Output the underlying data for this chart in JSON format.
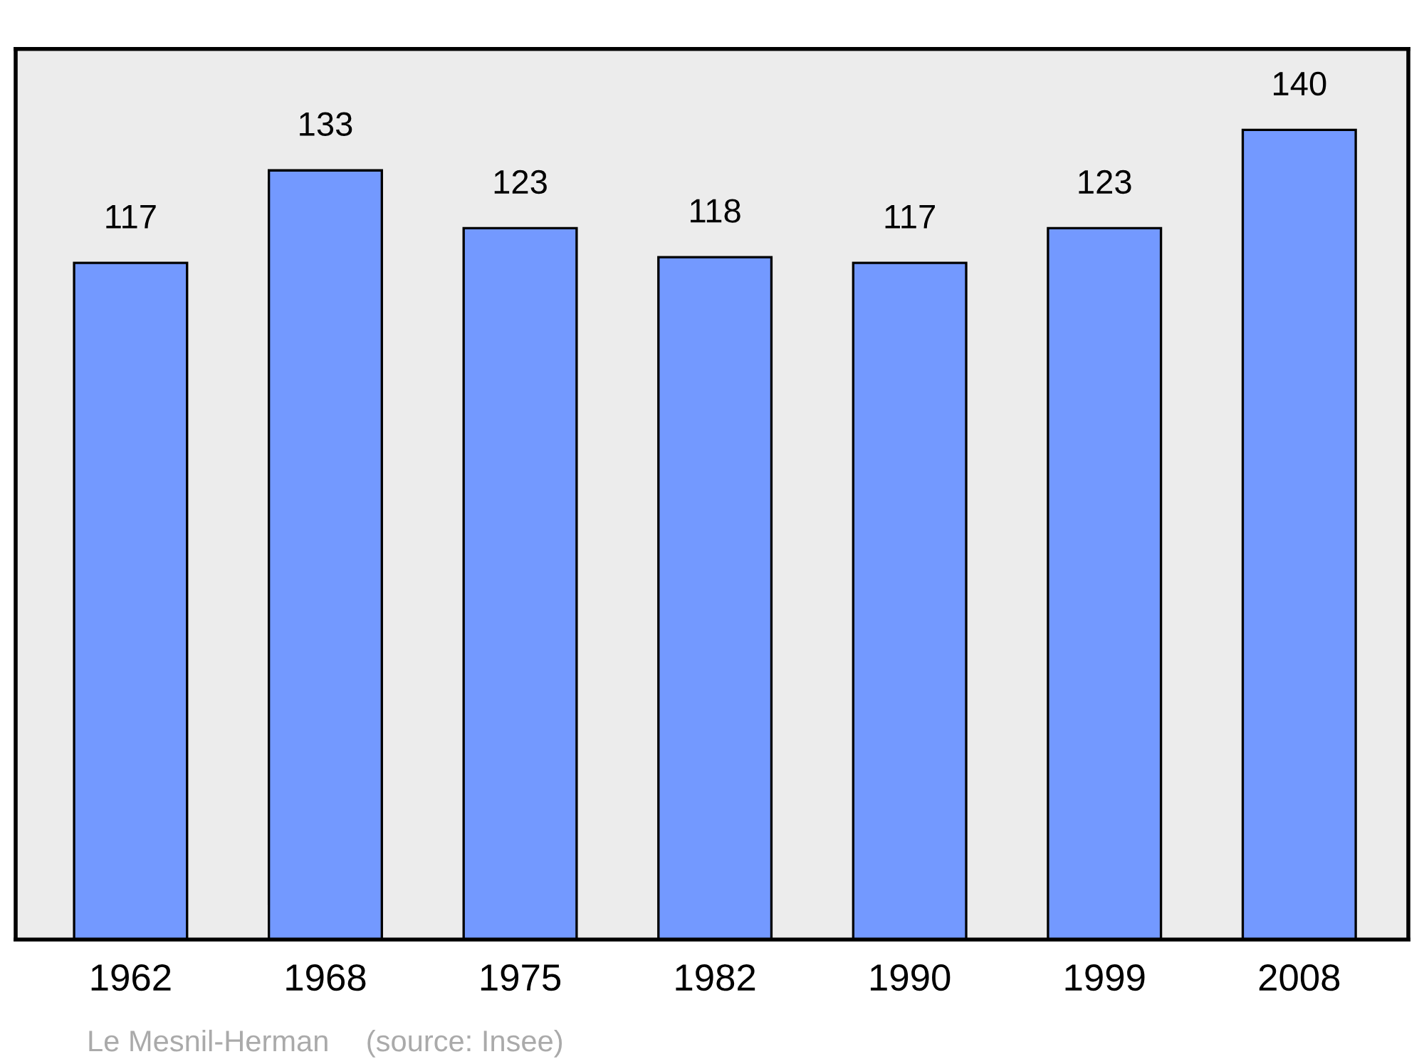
{
  "chart_data": {
    "type": "bar",
    "categories": [
      "1962",
      "1968",
      "1975",
      "1982",
      "1990",
      "1999",
      "2008"
    ],
    "values": [
      117,
      133,
      123,
      118,
      117,
      123,
      140
    ],
    "color": "#7399ff",
    "ylim": [
      0,
      154
    ],
    "data_labels": true,
    "grid": false,
    "legend": false,
    "tick_labels": "x",
    "annotations": [
      "Le Mesnil-Herman",
      "(source: Insee)"
    ]
  }
}
